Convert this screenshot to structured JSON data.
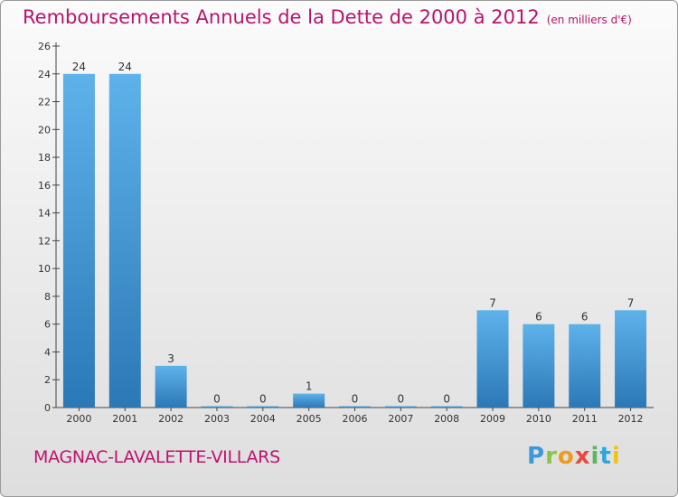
{
  "chart_data": {
    "type": "bar",
    "title": "Remboursements Annuels de la Dette de 2000 à 2012",
    "subtitle": "(en milliers d'€)",
    "categories": [
      "2000",
      "2001",
      "2002",
      "2003",
      "2004",
      "2005",
      "2006",
      "2007",
      "2008",
      "2009",
      "2010",
      "2011",
      "2012"
    ],
    "values": [
      24,
      24,
      3,
      0,
      0,
      1,
      0,
      0,
      0,
      7,
      6,
      6,
      7
    ],
    "ylim": [
      0,
      26
    ],
    "yticks": [
      0,
      2,
      4,
      6,
      8,
      10,
      12,
      14,
      16,
      18,
      20,
      22,
      24,
      26
    ],
    "xlabel": "",
    "ylabel": "",
    "grid": false,
    "bar_color_top": "#5eb2ea",
    "bar_color_bottom": "#2b78b7"
  },
  "footer": {
    "commune": "MAGNAC-LAVALETTE-VILLARS"
  },
  "logo": {
    "text": "Proxiti"
  },
  "colors": {
    "title": "#b8146c",
    "commune": "#c0126e"
  }
}
